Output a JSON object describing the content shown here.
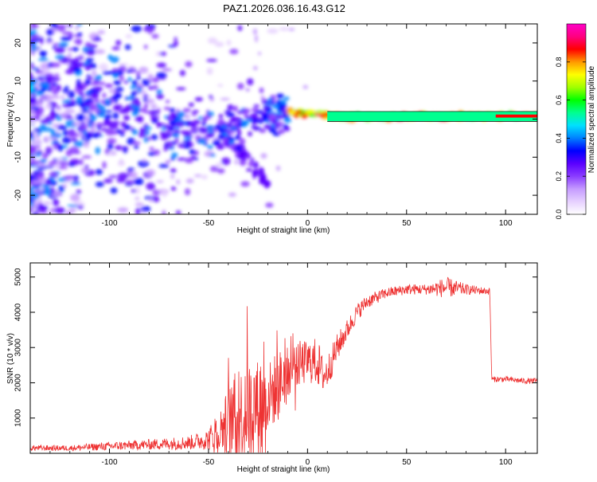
{
  "chart_data": [
    {
      "type": "heatmap",
      "title": "PAZ1.2026.036.16.43.G12",
      "xlabel": "Height of straight line (km)",
      "ylabel": "Frequency (Hz)",
      "xlim": [
        -140,
        116
      ],
      "ylim": [
        -25,
        25
      ],
      "x_ticks": [
        -100,
        -50,
        0,
        50,
        100
      ],
      "y_ticks": [
        -20,
        -10,
        0,
        10,
        20
      ],
      "colorbar": {
        "label": "Normalized spectral amplitude",
        "range": [
          0,
          1
        ],
        "ticks": [
          0.0,
          0.2,
          0.4,
          0.6,
          0.8
        ],
        "tick_labels": [
          "0.0",
          "0.2",
          "0.4",
          "0.6",
          "0.8"
        ],
        "colormap": [
          "#ffffff",
          "#e6d0ff",
          "#c59bff",
          "#8a3cff",
          "#5a00ff",
          "#0000ff",
          "#0080ff",
          "#00e0ff",
          "#00ff90",
          "#00ff00",
          "#a0ff00",
          "#ffff00",
          "#ff9900",
          "#ff0000",
          "#ff0080",
          "#ff00c8"
        ]
      },
      "ridge": {
        "x": [
          -105,
          -90,
          -75,
          -60,
          -45,
          -30,
          -20,
          -10,
          0,
          10,
          20,
          40,
          60,
          80,
          100,
          116
        ],
        "freq_hz": [
          5,
          3.5,
          0,
          -3,
          -2.5,
          0,
          1.5,
          2,
          1.5,
          1,
          0.5,
          0.5,
          0.7,
          0.8,
          0.8,
          0.8
        ]
      }
    },
    {
      "type": "line",
      "xlabel": "Height of straight line (km)",
      "ylabel": "SNR (10 * v/v)",
      "xlim": [
        -140,
        116
      ],
      "ylim": [
        0,
        5400
      ],
      "x_ticks": [
        -100,
        -50,
        0,
        50,
        100
      ],
      "y_ticks": [
        1000,
        2000,
        3000,
        4000,
        5000
      ],
      "color": "#ee3333",
      "series": [
        {
          "name": "SNR",
          "x": [
            -140,
            -120,
            -100,
            -80,
            -60,
            -50,
            -45,
            -40,
            -35,
            -30,
            -25,
            -20,
            -15,
            -10,
            -5,
            0,
            5,
            8,
            10,
            15,
            20,
            25,
            30,
            40,
            50,
            60,
            70,
            80,
            90,
            92,
            93,
            100,
            110,
            116
          ],
          "baseline": [
            150,
            150,
            200,
            250,
            300,
            400,
            600,
            900,
            1100,
            1300,
            1400,
            1600,
            1900,
            2300,
            2500,
            2600,
            2600,
            2200,
            2300,
            3000,
            3500,
            4000,
            4300,
            4550,
            4650,
            4650,
            4700,
            4650,
            4600,
            4600,
            2100,
            2100,
            2050,
            2050
          ],
          "spread": [
            80,
            80,
            120,
            150,
            200,
            300,
            700,
            1200,
            1500,
            1700,
            1600,
            1200,
            1300,
            900,
            700,
            600,
            700,
            500,
            500,
            400,
            300,
            250,
            200,
            150,
            150,
            150,
            300,
            150,
            100,
            100,
            80,
            80,
            80,
            80
          ]
        }
      ]
    }
  ]
}
